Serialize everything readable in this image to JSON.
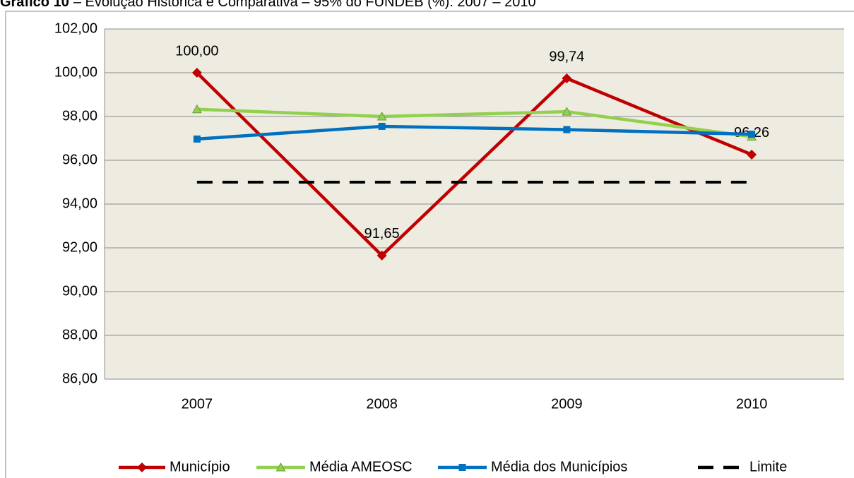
{
  "chart_data": {
    "type": "line",
    "title_label": "Gráfico 10",
    "title": "– Evolução Histórica e Comparativa – 95% do FUNDEB (%): 2007 – 2010",
    "categories": [
      "2007",
      "2008",
      "2009",
      "2010"
    ],
    "ylim": [
      86,
      102
    ],
    "yticks": [
      {
        "value": 86,
        "label": "86,00"
      },
      {
        "value": 88,
        "label": "88,00"
      },
      {
        "value": 90,
        "label": "90,00"
      },
      {
        "value": 92,
        "label": "92,00"
      },
      {
        "value": 94,
        "label": "94,00"
      },
      {
        "value": 96,
        "label": "96,00"
      },
      {
        "value": 98,
        "label": "98,00"
      },
      {
        "value": 100,
        "label": "100,00"
      },
      {
        "value": 102,
        "label": "102,00"
      }
    ],
    "grid": true,
    "legend": "bottom",
    "series": [
      {
        "name": "Município",
        "color": "#c00000",
        "marker": "diamond",
        "values": [
          100,
          91.65,
          99.74,
          96.26
        ],
        "value_labels": [
          "100,00",
          "91,65",
          "99,74",
          "96,26"
        ]
      },
      {
        "name": "Média AMEOSC",
        "color": "#92d050",
        "marker": "triangle",
        "values": [
          98.33,
          98.0,
          98.22,
          97.08
        ]
      },
      {
        "name": "Média dos Municípios",
        "color": "#0070c0",
        "marker": "square",
        "values": [
          96.97,
          97.55,
          97.4,
          97.19
        ]
      },
      {
        "name": "Limite",
        "color": "#000000",
        "dashed": true,
        "values": [
          95,
          95,
          95,
          95
        ]
      }
    ]
  }
}
